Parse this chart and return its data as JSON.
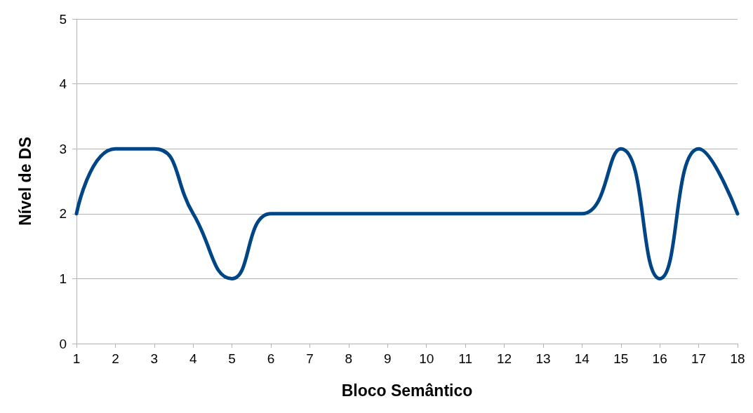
{
  "chart_data": {
    "type": "line",
    "xlabel": "Bloco Semântico",
    "ylabel": "Nível de DS",
    "x": [
      1,
      2,
      3,
      4,
      5,
      6,
      7,
      8,
      9,
      10,
      11,
      12,
      13,
      14,
      15,
      16,
      17,
      18
    ],
    "series": [
      {
        "color": "#004586",
        "values": [
          2,
          3,
          3,
          2,
          1,
          2,
          2,
          2,
          2,
          2,
          2,
          2,
          2,
          2,
          3,
          1,
          3,
          2
        ]
      }
    ],
    "xlim": [
      1,
      18
    ],
    "xticks": [
      1,
      2,
      3,
      4,
      5,
      6,
      7,
      8,
      9,
      10,
      11,
      12,
      13,
      14,
      15,
      16,
      17,
      18
    ],
    "ylim": [
      0,
      5
    ],
    "yticks": [
      0,
      1,
      2,
      3,
      4,
      5
    ],
    "grid": "y",
    "marker": "none",
    "line_style": "solid"
  }
}
